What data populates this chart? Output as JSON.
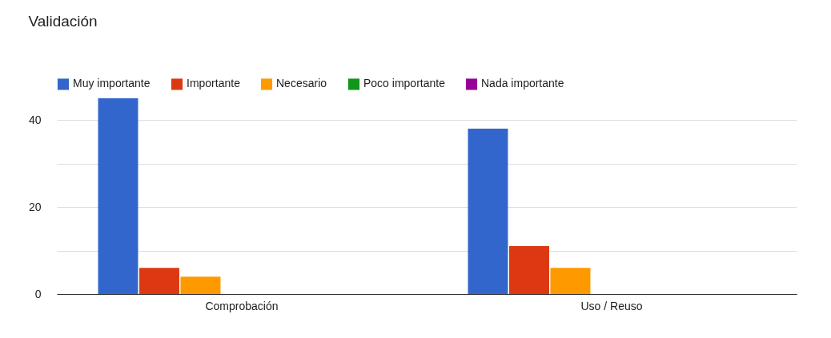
{
  "chart_data": {
    "type": "bar",
    "title": "Validación",
    "categories": [
      "Comprobación",
      "Uso / Reuso"
    ],
    "series": [
      {
        "name": "Muy importante",
        "color": "#3366cc",
        "values": [
          45,
          38
        ]
      },
      {
        "name": "Importante",
        "color": "#dc3912",
        "values": [
          6,
          11
        ]
      },
      {
        "name": "Necesario",
        "color": "#ff9900",
        "values": [
          4,
          6
        ]
      },
      {
        "name": "Poco importante",
        "color": "#109618",
        "values": [
          0,
          0
        ]
      },
      {
        "name": "Nada importante",
        "color": "#990099",
        "values": [
          0,
          0
        ]
      }
    ],
    "yticks": [
      0,
      {
        "value": 10,
        "label": null
      },
      20,
      {
        "value": 30,
        "label": null
      },
      40
    ],
    "ylim": [
      0,
      45
    ],
    "grid": "y",
    "legend": "top left"
  }
}
